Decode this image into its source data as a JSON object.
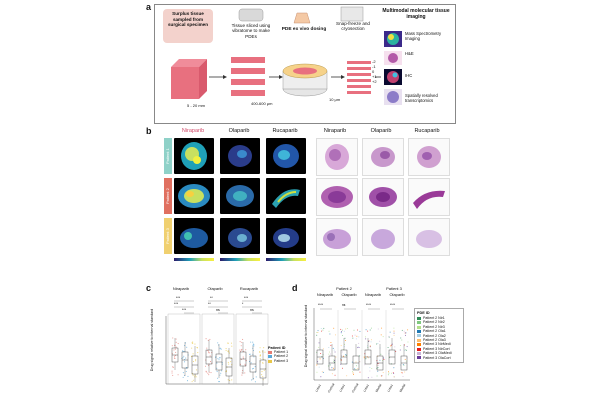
{
  "panel_a": {
    "label": "a",
    "surplus": "Surplus tissue sampled from surgical specimen",
    "sliced": "Tissue sliced using vibratome to make PDEs",
    "dosing": "PDE ex vivo dosing",
    "snap": "Snap-freeze and cryosection",
    "multimodal": "Multimodal molecular tissue imaging",
    "size1": "5 - 20 mm",
    "size2": "400-600 μm",
    "size3": "10 μm",
    "modalities": [
      "Mass Spectrometry Imaging",
      "H&E",
      "IHC",
      "Spatially resolved transcriptomics"
    ],
    "section_labels": [
      "-2",
      "-1",
      "0",
      "+1",
      "+2"
    ]
  },
  "panel_b": {
    "label": "b",
    "drugs": [
      "Niraparib",
      "Olaparib",
      "Rucaparib"
    ],
    "he_headers": [
      "Niraparib",
      "Olaparib",
      "Rucaparib"
    ],
    "patients": [
      "Patient 1",
      "Patient 2",
      "Patient 3"
    ],
    "patient_colors": [
      "#8fd1c8",
      "#e07060",
      "#f0d070"
    ]
  },
  "panel_c": {
    "label": "c",
    "ylabel": "Drug signal relative to internal standard",
    "groups": [
      "Niraparib",
      "Olaparib",
      "Rucaparib"
    ],
    "legend_title": "Patient ID",
    "legend": [
      {
        "name": "Patient 1",
        "color": "#e27b73"
      },
      {
        "name": "Patient 2",
        "color": "#5aa8d8"
      },
      {
        "name": "Patient 3",
        "color": "#e8c74a"
      }
    ],
    "sig": [
      "***",
      "***",
      "***",
      "**",
      "**",
      "ns",
      "***",
      "*",
      "ns",
      "ns",
      "ns"
    ]
  },
  "panel_d": {
    "label": "d",
    "patient_headers": [
      "Patient 2",
      "Patient 3"
    ],
    "groups": [
      "Niraparib",
      "Olaparib",
      "Niraparib",
      "Olaparib"
    ],
    "ylabel": "Drug signal relative to internal standard",
    "xticks": [
      "Lobe1",
      "Cortical",
      "Lobe1",
      "Cortical",
      "Lobe1",
      "Medial",
      "Lobe1",
      "Medial"
    ],
    "legend_title": "PDE ID",
    "legend": [
      {
        "name": "Patient 2 Nir1",
        "color": "#2e8b57"
      },
      {
        "name": "Patient 2 Nir2",
        "color": "#7fc97f"
      },
      {
        "name": "Patient 2 Nir3",
        "color": "#b2df8a"
      },
      {
        "name": "Patient 2 Ola1",
        "color": "#1f78b4"
      },
      {
        "name": "Patient 2 Ola2",
        "color": "#a6cee3"
      },
      {
        "name": "Patient 2 Ola3",
        "color": "#fdbf6f"
      },
      {
        "name": "Patient 3 NirMedi",
        "color": "#ff7f00"
      },
      {
        "name": "Patient 3 NirCort",
        "color": "#e31a1c"
      },
      {
        "name": "Patient 3 OlaMedi",
        "color": "#cab2d6"
      },
      {
        "name": "Patient 3 OlaCort",
        "color": "#6a3d9a"
      }
    ],
    "sig": [
      "****",
      "ns",
      "****",
      "****",
      "ns",
      "****",
      "ns"
    ]
  }
}
